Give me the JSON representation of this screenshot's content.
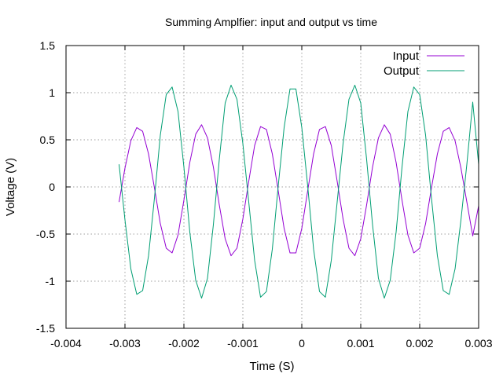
{
  "chart_data": {
    "type": "line",
    "title": "Summing Amplfier: input and output vs time",
    "xlabel": "Time (S)",
    "ylabel": "Voltage (V)",
    "xlim": [
      -0.004,
      0.003
    ],
    "ylim": [
      -1.5,
      1.5
    ],
    "grid": true,
    "legend_position": "top-right",
    "x_ticks": [
      -0.004,
      -0.003,
      -0.002,
      -0.001,
      0,
      0.001,
      0.002,
      0.003
    ],
    "x_tick_labels": [
      "-0.004",
      "-0.003",
      "-0.002",
      "-0.001",
      "0",
      "0.001",
      "0.002",
      "0.003"
    ],
    "y_ticks": [
      -1.5,
      -1,
      -0.5,
      0,
      0.5,
      1,
      1.5
    ],
    "y_tick_labels": [
      "-1.5",
      "-1",
      "-0.5",
      "0",
      "0.5",
      "1",
      "1.5"
    ],
    "series": [
      {
        "name": "Input",
        "color": "#9400d3",
        "x": [
          -0.0031,
          -0.003,
          -0.0029,
          -0.0028,
          -0.0027,
          -0.0026,
          -0.0025,
          -0.0024,
          -0.0023,
          -0.0022,
          -0.0021,
          -0.002,
          -0.0019,
          -0.0018,
          -0.0017,
          -0.0016,
          -0.0015,
          -0.0014,
          -0.0013,
          -0.0012,
          -0.0011,
          -0.001,
          -0.0009,
          -0.0008,
          -0.0007,
          -0.0006,
          -0.0005,
          -0.0004,
          -0.0003,
          -0.0002,
          -0.0001,
          0,
          0.0001,
          0.0002,
          0.0003,
          0.0004,
          0.0005,
          0.0006,
          0.0007,
          0.0008,
          0.0009,
          0.001,
          0.0011,
          0.0012,
          0.0013,
          0.0014,
          0.0015,
          0.0016,
          0.0017,
          0.0018,
          0.0019,
          0.002,
          0.0021,
          0.0022,
          0.0023,
          0.0024,
          0.0025,
          0.0026,
          0.0027,
          0.0028,
          0.0029,
          0.003
        ],
        "y": [
          -0.16,
          0.2,
          0.49,
          0.63,
          0.59,
          0.35,
          -0.01,
          -0.39,
          -0.65,
          -0.7,
          -0.51,
          -0.14,
          0.26,
          0.56,
          0.66,
          0.52,
          0.21,
          -0.19,
          -0.55,
          -0.73,
          -0.65,
          -0.34,
          0.06,
          0.44,
          0.64,
          0.61,
          0.35,
          -0.04,
          -0.44,
          -0.7,
          -0.7,
          -0.44,
          -0.04,
          0.35,
          0.61,
          0.64,
          0.44,
          0.06,
          -0.34,
          -0.65,
          -0.73,
          -0.55,
          -0.19,
          0.21,
          0.52,
          0.66,
          0.56,
          0.26,
          -0.14,
          -0.51,
          -0.7,
          -0.65,
          -0.39,
          -0.01,
          0.35,
          0.59,
          0.63,
          0.49,
          0.2,
          -0.16,
          -0.52,
          -0.2
        ]
      },
      {
        "name": "Output",
        "color": "#009e73",
        "x": [
          -0.0031,
          -0.003,
          -0.0029,
          -0.0028,
          -0.0027,
          -0.0026,
          -0.0025,
          -0.0024,
          -0.0023,
          -0.0022,
          -0.0021,
          -0.002,
          -0.0019,
          -0.0018,
          -0.0017,
          -0.0016,
          -0.0015,
          -0.0014,
          -0.0013,
          -0.0012,
          -0.0011,
          -0.001,
          -0.0009,
          -0.0008,
          -0.0007,
          -0.0006,
          -0.0005,
          -0.0004,
          -0.0003,
          -0.0002,
          -0.0001,
          0,
          0.0001,
          0.0002,
          0.0003,
          0.0004,
          0.0005,
          0.0006,
          0.0007,
          0.0008,
          0.0009,
          0.001,
          0.0011,
          0.0012,
          0.0013,
          0.0014,
          0.0015,
          0.0016,
          0.0017,
          0.0018,
          0.0019,
          0.002,
          0.0021,
          0.0022,
          0.0023,
          0.0024,
          0.0025,
          0.0026,
          0.0027,
          0.0028,
          0.0029,
          0.003
        ],
        "y": [
          0.24,
          -0.35,
          -0.87,
          -1.14,
          -1.1,
          -0.73,
          -0.12,
          0.55,
          0.98,
          1.06,
          0.8,
          0.21,
          -0.48,
          -0.99,
          -1.18,
          -0.97,
          -0.4,
          0.29,
          0.89,
          1.08,
          0.93,
          0.46,
          -0.16,
          -0.78,
          -1.17,
          -1.11,
          -0.66,
          0.01,
          0.63,
          1.04,
          1.04,
          0.63,
          0.01,
          -0.66,
          -1.11,
          -1.17,
          -0.78,
          -0.16,
          0.46,
          0.93,
          1.08,
          0.89,
          0.29,
          -0.4,
          -0.97,
          -1.18,
          -0.99,
          -0.48,
          0.21,
          0.8,
          1.06,
          0.98,
          0.55,
          -0.12,
          -0.73,
          -1.1,
          -1.14,
          -0.87,
          -0.35,
          0.24,
          0.9,
          0.24
        ]
      }
    ]
  }
}
